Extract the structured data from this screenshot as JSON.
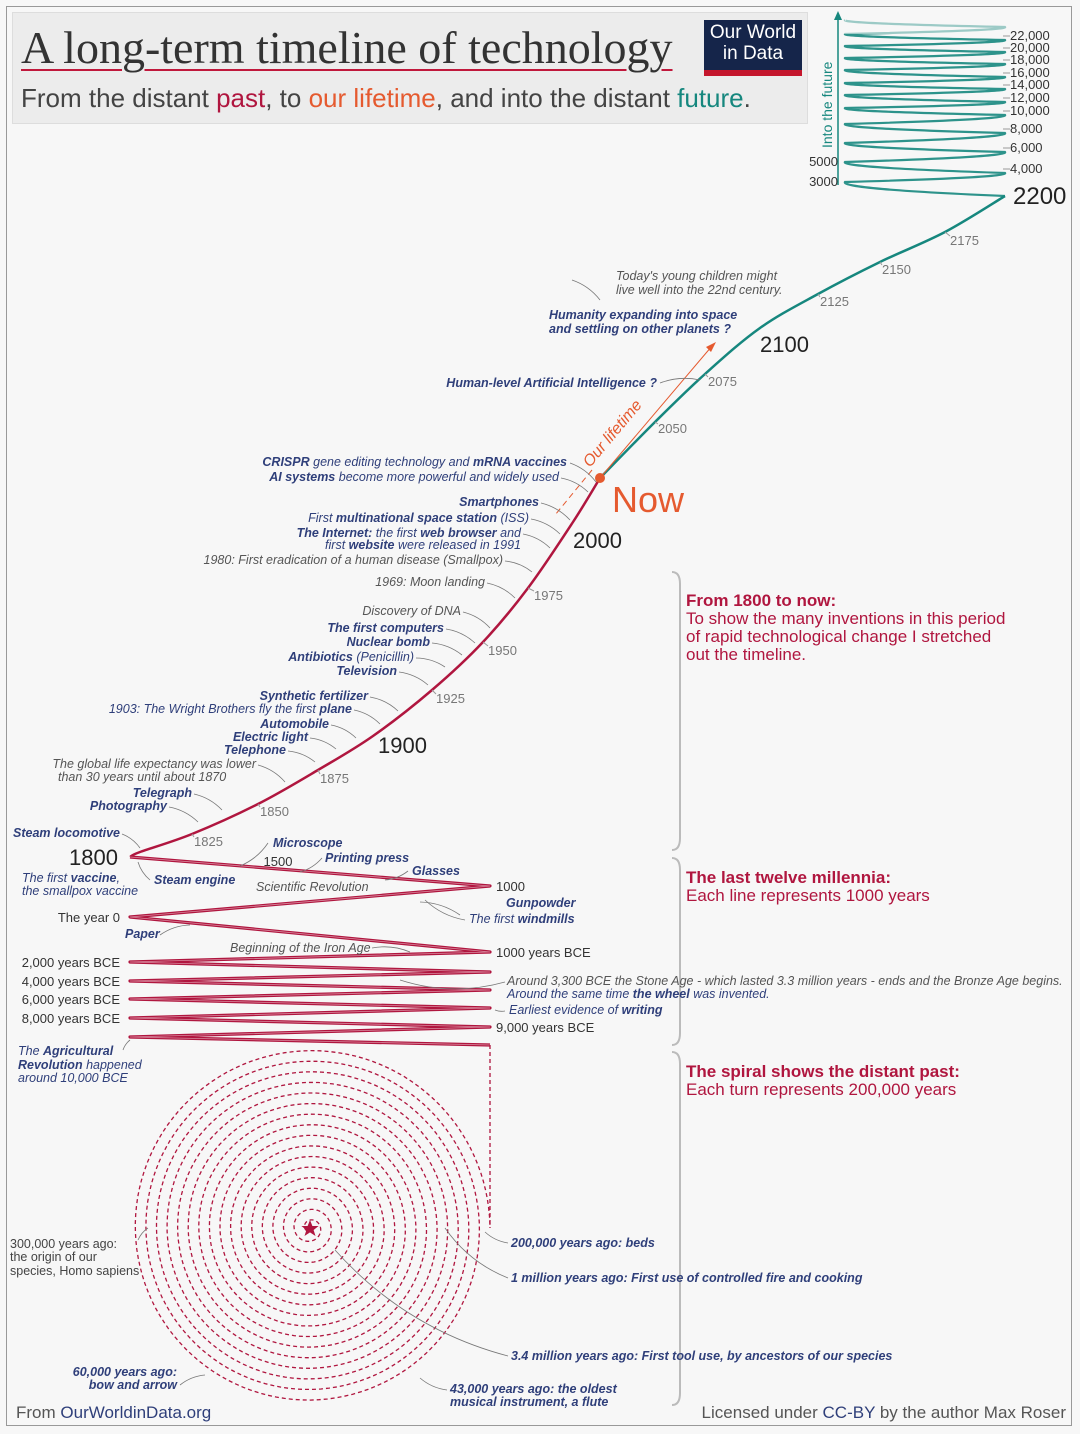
{
  "colors": {
    "past": "#b0163f",
    "lifetime": "#e55a2f",
    "future": "#16877e",
    "tech_text": "#2f3f7a",
    "context_text": "#555555"
  },
  "header": {
    "title": "A long-term timeline of technology",
    "subtitle": {
      "p1": "From the distant ",
      "past": "past",
      "p2": ", to ",
      "lifetime": "our lifetime",
      "p3": ", and into the distant ",
      "future": "future",
      "p4": "."
    }
  },
  "logo": {
    "line1": "Our World",
    "line2": "in Data"
  },
  "future_axis": {
    "label": "Into the future",
    "right_labels": [
      "22,000",
      "20,000",
      "18,000",
      "16,000",
      "14,000",
      "12,000",
      "10,000",
      "8,000",
      "6,000",
      "4,000"
    ],
    "left_labels": [
      "5000",
      "3000"
    ],
    "end_label": "2200"
  },
  "timeline": {
    "big_labels": [
      "2100",
      "2000",
      "1900",
      "1800"
    ],
    "small_ticks": [
      "2175",
      "2150",
      "2125",
      "2075",
      "2050",
      "1975",
      "1950",
      "1925",
      "1875",
      "1850",
      "1825"
    ],
    "now_label": "Now",
    "lifetime_label": "Our lifetime",
    "zigzag_labels": [
      "1500",
      "1000",
      "The year 0",
      "1000 years BCE",
      "2,000 years BCE",
      "4,000 years BCE",
      "6,000 years BCE",
      "8,000 years BCE",
      "9,000 years BCE"
    ]
  },
  "annotations": [
    {
      "s": "tech",
      "seg": [
        [
          "CRISPR",
          1
        ],
        [
          " gene editing technology and ",
          0
        ],
        [
          "mRNA vaccines",
          1
        ]
      ]
    },
    {
      "s": "tech",
      "seg": [
        [
          "AI systems",
          1
        ],
        [
          " become more powerful and widely used",
          0
        ]
      ]
    },
    {
      "s": "tech",
      "seg": [
        [
          "Smartphones",
          1
        ]
      ]
    },
    {
      "s": "tech",
      "seg": [
        [
          "First ",
          0
        ],
        [
          "multinational space station",
          1
        ],
        [
          " (ISS)",
          0
        ]
      ]
    },
    {
      "s": "tech",
      "seg": [
        [
          "The Internet:",
          1
        ],
        [
          " the first ",
          0
        ],
        [
          "web browser",
          1
        ],
        [
          " and",
          0
        ]
      ]
    },
    {
      "s": "tech",
      "seg": [
        [
          "first ",
          0
        ],
        [
          "website",
          1
        ],
        [
          " were released in 1991",
          0
        ]
      ]
    },
    {
      "s": "ctx",
      "seg": [
        [
          "1980: First eradication of a human disease (Smallpox)",
          0
        ]
      ]
    },
    {
      "s": "ctx",
      "seg": [
        [
          "1969: Moon landing",
          0
        ]
      ]
    },
    {
      "s": "ctx",
      "seg": [
        [
          "Discovery of DNA",
          0
        ]
      ]
    },
    {
      "s": "tech",
      "seg": [
        [
          "The first computers",
          1
        ]
      ]
    },
    {
      "s": "tech",
      "seg": [
        [
          "Nuclear bomb",
          1
        ]
      ]
    },
    {
      "s": "tech",
      "seg": [
        [
          "Antibiotics",
          1
        ],
        [
          " (Penicillin)",
          0
        ]
      ]
    },
    {
      "s": "tech",
      "seg": [
        [
          "Television",
          1
        ]
      ]
    },
    {
      "s": "tech",
      "seg": [
        [
          "Synthetic fertilizer",
          1
        ]
      ]
    },
    {
      "s": "tech",
      "seg": [
        [
          "1903: The Wright Brothers fly the first ",
          0
        ],
        [
          "plane",
          1
        ]
      ]
    },
    {
      "s": "tech",
      "seg": [
        [
          "Automobile",
          1
        ]
      ]
    },
    {
      "s": "tech",
      "seg": [
        [
          "Electric light",
          1
        ]
      ]
    },
    {
      "s": "tech",
      "seg": [
        [
          "Telephone",
          1
        ]
      ]
    },
    {
      "s": "ctx",
      "seg": [
        [
          "The global life expectancy was lower",
          0
        ]
      ]
    },
    {
      "s": "ctx",
      "seg": [
        [
          "than 30 years until about 1870",
          0
        ]
      ]
    },
    {
      "s": "tech",
      "seg": [
        [
          "Telegraph",
          1
        ]
      ]
    },
    {
      "s": "tech",
      "seg": [
        [
          "Photography",
          1
        ]
      ]
    },
    {
      "s": "tech",
      "seg": [
        [
          "Steam locomotive",
          1
        ]
      ]
    },
    {
      "s": "tech",
      "seg": [
        [
          "Microscope",
          1
        ]
      ]
    },
    {
      "s": "tech",
      "seg": [
        [
          "Printing press",
          1
        ]
      ]
    },
    {
      "s": "tech",
      "seg": [
        [
          "Glasses",
          1
        ]
      ]
    },
    {
      "s": "tech",
      "seg": [
        [
          "Steam engine",
          1
        ]
      ]
    },
    {
      "s": "ctx",
      "seg": [
        [
          "Scientific Revolution",
          0
        ]
      ]
    },
    {
      "s": "tech",
      "seg": [
        [
          "The first ",
          0
        ],
        [
          "vaccine",
          1
        ],
        [
          ",",
          0
        ]
      ]
    },
    {
      "s": "tech",
      "seg": [
        [
          "the smallpox vaccine",
          0
        ]
      ]
    },
    {
      "s": "tech",
      "seg": [
        [
          "Gunpowder",
          1
        ]
      ]
    },
    {
      "s": "tech",
      "seg": [
        [
          "The first ",
          0
        ],
        [
          "windmills",
          1
        ]
      ]
    },
    {
      "s": "tech",
      "seg": [
        [
          "Paper",
          1
        ]
      ]
    },
    {
      "s": "ctx",
      "seg": [
        [
          "Beginning of the Iron Age",
          0
        ]
      ]
    },
    {
      "s": "ctx",
      "seg": [
        [
          "Around 3,300 BCE the Stone Age - which lasted 3.3 million years - ends and the Bronze Age begins.",
          0
        ]
      ]
    },
    {
      "s": "tech",
      "seg": [
        [
          "Around the same time ",
          0
        ],
        [
          "the wheel",
          1
        ],
        [
          " was invented.",
          0
        ]
      ]
    },
    {
      "s": "tech",
      "seg": [
        [
          "Earliest evidence of ",
          0
        ],
        [
          "writing",
          1
        ]
      ]
    },
    {
      "s": "tech",
      "seg": [
        [
          "The ",
          0
        ],
        [
          "Agricultural",
          1
        ]
      ]
    },
    {
      "s": "tech",
      "seg": [
        [
          "Revolution",
          1
        ],
        [
          " happened",
          0
        ]
      ]
    },
    {
      "s": "tech",
      "seg": [
        [
          "around 10,000 BCE",
          0
        ]
      ]
    },
    {
      "s": "plain",
      "seg": [
        [
          "300,000 years ago:",
          0
        ]
      ]
    },
    {
      "s": "plain",
      "seg": [
        [
          "the origin of our",
          0
        ]
      ]
    },
    {
      "s": "plain",
      "seg": [
        [
          "species, Homo sapiens",
          0
        ]
      ]
    },
    {
      "s": "tech",
      "seg": [
        [
          "200,000 years ago: beds",
          1
        ]
      ]
    },
    {
      "s": "tech",
      "seg": [
        [
          "1 million years ago: First use of controlled fire and cooking",
          1
        ]
      ]
    },
    {
      "s": "tech",
      "seg": [
        [
          "3.4 million years ago: First tool use, by ancestors of our species",
          1
        ]
      ]
    },
    {
      "s": "tech",
      "seg": [
        [
          "60,000 years ago:",
          1
        ]
      ]
    },
    {
      "s": "tech",
      "seg": [
        [
          "bow and arrow",
          1
        ]
      ]
    },
    {
      "s": "tech",
      "seg": [
        [
          "43,000 years ago: the oldest",
          1
        ]
      ]
    },
    {
      "s": "tech",
      "seg": [
        [
          "musical instrument, a flute",
          1
        ]
      ]
    },
    {
      "s": "ctx",
      "seg": [
        [
          "Today's young children might",
          0
        ]
      ]
    },
    {
      "s": "ctx",
      "seg": [
        [
          "live well into the 22nd century.",
          0
        ]
      ]
    },
    {
      "s": "tech",
      "seg": [
        [
          "Humanity expanding into space",
          1
        ]
      ]
    },
    {
      "s": "tech",
      "seg": [
        [
          "and settling on other planets ?",
          1
        ]
      ]
    },
    {
      "s": "tech",
      "seg": [
        [
          "Human-level Artificial Intelligence ?",
          1
        ]
      ]
    }
  ],
  "notes": [
    {
      "heading": "From 1800 to now:",
      "body": [
        "To show the many inventions in this period",
        "of rapid technological change I stretched",
        "out the timeline."
      ]
    },
    {
      "heading": "The last twelve millennia:",
      "body": [
        "Each line represents 1000 years"
      ]
    },
    {
      "heading": "The spiral shows the distant past:",
      "body": [
        "Each turn represents 200,000 years"
      ]
    }
  ],
  "footer": {
    "left_prefix": "From ",
    "left_link": "OurWorldinData.org",
    "right_prefix": "Licensed under ",
    "right_link": "CC-BY",
    "right_suffix": " by the author Max Roser"
  }
}
